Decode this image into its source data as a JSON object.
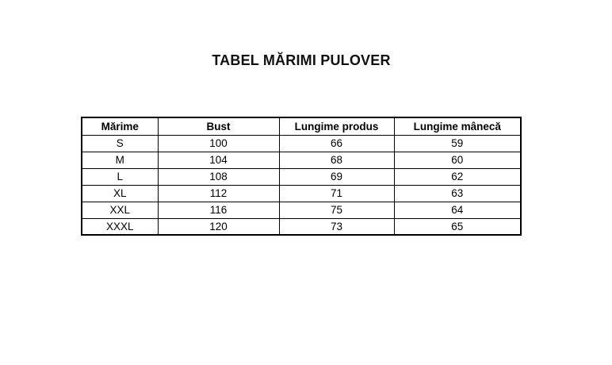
{
  "title": "TABEL MĂRIMI PULOVER",
  "table": {
    "columns": [
      "Mărime",
      "Bust",
      "Lungime produs",
      "Lungime mânecă"
    ],
    "rows": [
      [
        "S",
        "100",
        "66",
        "59"
      ],
      [
        "M",
        "104",
        "68",
        "60"
      ],
      [
        "L",
        "108",
        "69",
        "62"
      ],
      [
        "XL",
        "112",
        "71",
        "63"
      ],
      [
        "XXL",
        "116",
        "75",
        "64"
      ],
      [
        "XXXL",
        "120",
        "73",
        "65"
      ]
    ]
  }
}
